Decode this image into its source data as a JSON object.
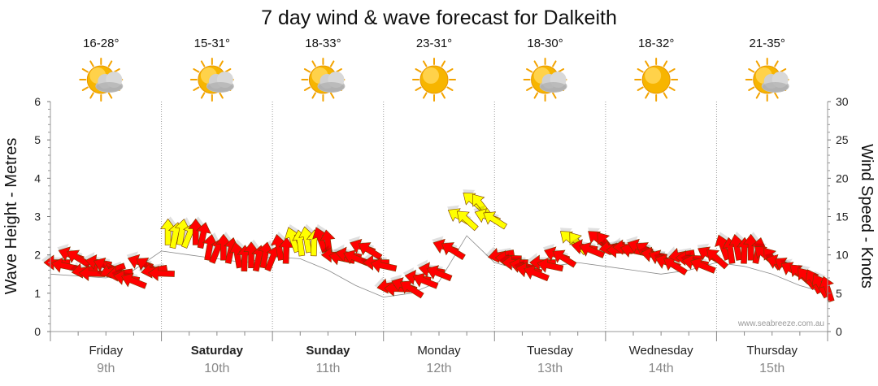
{
  "chart_data": {
    "type": "line",
    "title": "7 day wind & wave forecast for Dalkeith",
    "ylabel_left": "Wave Height - Metres",
    "ylabel_right": "Wind Speed - Knots",
    "ylim_left": [
      0,
      6
    ],
    "ylim_right": [
      0,
      30
    ],
    "left_ticks": [
      "0",
      "1",
      "2",
      "3",
      "4",
      "5",
      "6"
    ],
    "right_ticks": [
      "0",
      "5",
      "10",
      "15",
      "20",
      "25",
      "30"
    ],
    "watermark": "www.seabreeze.com.au",
    "grid": "dotted vertical at day boundaries",
    "days": [
      {
        "day": "Friday",
        "date": "9th",
        "bold": false,
        "temp": "16-28°",
        "weather": "partly-cloudy-icon"
      },
      {
        "day": "Saturday",
        "date": "10th",
        "bold": true,
        "temp": "15-31°",
        "weather": "partly-cloudy-icon"
      },
      {
        "day": "Sunday",
        "date": "11th",
        "bold": true,
        "temp": "18-33°",
        "weather": "partly-cloudy-icon"
      },
      {
        "day": "Monday",
        "date": "12th",
        "bold": false,
        "temp": "23-31°",
        "weather": "sunny-icon"
      },
      {
        "day": "Tuesday",
        "date": "13th",
        "bold": false,
        "temp": "18-30°",
        "weather": "partly-cloudy-icon"
      },
      {
        "day": "Wednesday",
        "date": "14th",
        "bold": false,
        "temp": "18-32°",
        "weather": "sunny-icon"
      },
      {
        "day": "Thursday",
        "date": "15th",
        "bold": false,
        "temp": "21-35°",
        "weather": "partly-cloudy-icon"
      }
    ],
    "series": [
      {
        "name": "Wind",
        "unit": "knots",
        "colors": {
          "strong": "#ff0000",
          "light": "#ffff00"
        },
        "x_hours": [
          0,
          3,
          6,
          9,
          12,
          15,
          18,
          21,
          24,
          27,
          30,
          33,
          36,
          39,
          42,
          45,
          48,
          51,
          54,
          57,
          60,
          63,
          66,
          69,
          72,
          75,
          78,
          81,
          84,
          87,
          90,
          93,
          96,
          99,
          102,
          105,
          108,
          111,
          114,
          117,
          120,
          123,
          126,
          129,
          132,
          135,
          138,
          141,
          144,
          147,
          150,
          153,
          156,
          159,
          162,
          165
        ],
        "speed_knots": [
          9,
          10,
          8,
          9,
          8,
          7,
          9,
          8,
          13,
          13,
          13,
          11,
          11,
          10,
          10,
          10,
          11,
          12,
          12,
          12,
          10,
          10,
          11,
          9,
          6,
          6,
          7,
          8,
          11,
          15,
          17,
          15,
          10,
          9,
          8,
          9,
          10,
          12,
          11,
          12,
          11,
          11,
          11,
          10,
          9,
          10,
          9,
          10,
          11,
          11,
          11,
          10,
          9,
          8,
          7,
          6
        ],
        "direction_deg": [
          180,
          200,
          170,
          190,
          160,
          190,
          200,
          170,
          270,
          280,
          270,
          280,
          270,
          260,
          270,
          280,
          260,
          250,
          260,
          250,
          180,
          190,
          200,
          180,
          170,
          200,
          190,
          190,
          200,
          210,
          220,
          200,
          170,
          180,
          190,
          180,
          200,
          220,
          190,
          220,
          170,
          180,
          200,
          190,
          200,
          170,
          190,
          210,
          250,
          260,
          270,
          220,
          200,
          210,
          230,
          240
        ],
        "colorband": [
          "s",
          "s",
          "s",
          "s",
          "s",
          "s",
          "s",
          "s",
          "l",
          "l",
          "s",
          "s",
          "s",
          "s",
          "s",
          "s",
          "s",
          "l",
          "l",
          "s",
          "s",
          "s",
          "s",
          "s",
          "s",
          "s",
          "s",
          "s",
          "s",
          "l",
          "l",
          "l",
          "s",
          "s",
          "s",
          "s",
          "s",
          "l",
          "s",
          "s",
          "s",
          "s",
          "s",
          "s",
          "s",
          "s",
          "s",
          "s",
          "s",
          "s",
          "s",
          "s",
          "s",
          "s",
          "s",
          "s"
        ]
      },
      {
        "name": "Wave",
        "unit": "metres",
        "x_hours": [
          0,
          6,
          12,
          18,
          24,
          30,
          36,
          42,
          48,
          54,
          60,
          66,
          72,
          78,
          84,
          90,
          96,
          102,
          108,
          114,
          120,
          126,
          132,
          138,
          144,
          150,
          156,
          162,
          168
        ],
        "height_m": [
          1.5,
          1.45,
          1.4,
          1.6,
          2.1,
          2.0,
          1.9,
          1.8,
          1.95,
          1.9,
          1.6,
          1.2,
          0.9,
          1.0,
          1.3,
          2.5,
          1.8,
          1.6,
          1.7,
          1.8,
          1.7,
          1.6,
          1.5,
          1.6,
          1.8,
          1.7,
          1.5,
          1.2,
          1.0
        ]
      }
    ]
  }
}
